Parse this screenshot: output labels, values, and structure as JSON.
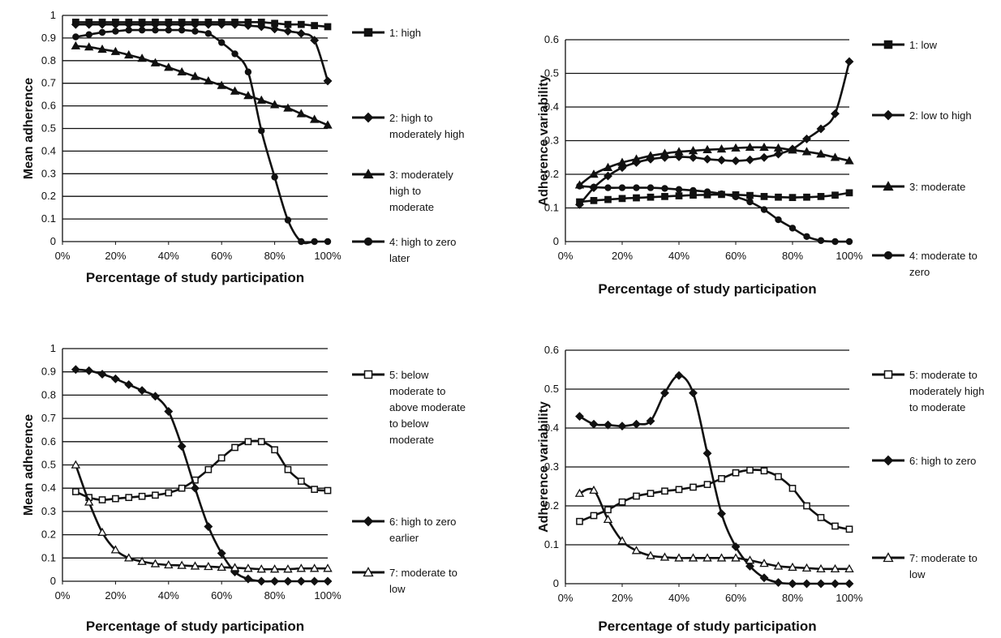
{
  "chart_data": [
    {
      "type": "line",
      "xlabel": "Percentage of study participation",
      "ylabel": "Mean adherence",
      "ylim": [
        0,
        1
      ],
      "yticks": [
        "0",
        "0.1",
        "0.2",
        "0.3",
        "0.4",
        "0.5",
        "0.6",
        "0.7",
        "0.8",
        "0.9",
        "1"
      ],
      "xticks": [
        "0%",
        "20%",
        "40%",
        "60%",
        "80%",
        "100%"
      ],
      "x": [
        5,
        10,
        15,
        20,
        25,
        30,
        35,
        40,
        45,
        50,
        55,
        60,
        65,
        70,
        75,
        80,
        85,
        90,
        95,
        100
      ],
      "series": [
        {
          "name": "1: high",
          "marker": "square",
          "values": [
            0.97,
            0.97,
            0.97,
            0.97,
            0.97,
            0.97,
            0.97,
            0.97,
            0.97,
            0.97,
            0.97,
            0.97,
            0.97,
            0.97,
            0.97,
            0.965,
            0.96,
            0.96,
            0.955,
            0.95
          ]
        },
        {
          "name": "2: high to moderately high",
          "marker": "diamond",
          "values": [
            0.96,
            0.96,
            0.96,
            0.96,
            0.96,
            0.96,
            0.96,
            0.96,
            0.96,
            0.96,
            0.96,
            0.96,
            0.96,
            0.955,
            0.95,
            0.94,
            0.93,
            0.92,
            0.89,
            0.71
          ]
        },
        {
          "name": "3: moderately high to moderate",
          "marker": "triangle",
          "values": [
            0.865,
            0.86,
            0.85,
            0.84,
            0.825,
            0.81,
            0.79,
            0.77,
            0.75,
            0.73,
            0.71,
            0.69,
            0.665,
            0.645,
            0.625,
            0.605,
            0.59,
            0.565,
            0.54,
            0.515
          ]
        },
        {
          "name": "4: high to zero later",
          "marker": "circle",
          "values": [
            0.905,
            0.915,
            0.925,
            0.93,
            0.935,
            0.935,
            0.935,
            0.935,
            0.935,
            0.93,
            0.92,
            0.88,
            0.83,
            0.75,
            0.49,
            0.285,
            0.095,
            0.0,
            0.0,
            0.0
          ]
        }
      ]
    },
    {
      "type": "line",
      "xlabel": "Percentage of study participation",
      "ylabel": "Adherence variability",
      "ylim": [
        0,
        0.6
      ],
      "yticks": [
        "0",
        "0.1",
        "0.2",
        "0.3",
        "0.4",
        "0.5",
        "0.6"
      ],
      "xticks": [
        "0%",
        "20%",
        "40%",
        "60%",
        "80%",
        "100%"
      ],
      "x": [
        5,
        10,
        15,
        20,
        25,
        30,
        35,
        40,
        45,
        50,
        55,
        60,
        65,
        70,
        75,
        80,
        85,
        90,
        95,
        100
      ],
      "series": [
        {
          "name": "1: low",
          "marker": "square",
          "values": [
            0.118,
            0.122,
            0.125,
            0.128,
            0.13,
            0.132,
            0.134,
            0.136,
            0.138,
            0.139,
            0.14,
            0.139,
            0.137,
            0.134,
            0.132,
            0.131,
            0.132,
            0.134,
            0.138,
            0.145
          ]
        },
        {
          "name": "2: low to high",
          "marker": "diamond",
          "values": [
            0.11,
            0.16,
            0.195,
            0.22,
            0.235,
            0.245,
            0.25,
            0.252,
            0.25,
            0.245,
            0.242,
            0.24,
            0.243,
            0.25,
            0.26,
            0.275,
            0.305,
            0.335,
            0.38,
            0.535
          ]
        },
        {
          "name": "3: moderate",
          "marker": "triangle",
          "values": [
            0.168,
            0.2,
            0.22,
            0.235,
            0.245,
            0.255,
            0.262,
            0.267,
            0.27,
            0.273,
            0.275,
            0.278,
            0.28,
            0.28,
            0.278,
            0.272,
            0.267,
            0.26,
            0.25,
            0.24
          ]
        },
        {
          "name": "4: moderate to zero",
          "marker": "circle",
          "values": [
            0.165,
            0.162,
            0.16,
            0.16,
            0.16,
            0.16,
            0.158,
            0.155,
            0.152,
            0.148,
            0.142,
            0.133,
            0.118,
            0.095,
            0.065,
            0.04,
            0.015,
            0.003,
            0.0,
            0.0
          ]
        }
      ]
    },
    {
      "type": "line",
      "xlabel": "Percentage of study participation",
      "ylabel": "Mean adherence",
      "ylim": [
        0,
        1
      ],
      "yticks": [
        "0",
        "0.1",
        "0.2",
        "0.3",
        "0.4",
        "0.5",
        "0.6",
        "0.7",
        "0.8",
        "0.9",
        "1"
      ],
      "xticks": [
        "0%",
        "20%",
        "40%",
        "60%",
        "80%",
        "100%"
      ],
      "x": [
        5,
        10,
        15,
        20,
        25,
        30,
        35,
        40,
        45,
        50,
        55,
        60,
        65,
        70,
        75,
        80,
        85,
        90,
        95,
        100
      ],
      "series": [
        {
          "name": "5: below moderate to above moderate to below moderate",
          "marker": "open-square",
          "values": [
            0.385,
            0.36,
            0.35,
            0.355,
            0.36,
            0.365,
            0.37,
            0.38,
            0.4,
            0.435,
            0.48,
            0.53,
            0.575,
            0.6,
            0.6,
            0.565,
            0.48,
            0.43,
            0.395,
            0.39
          ]
        },
        {
          "name": "6: high to zero earlier",
          "marker": "diamond",
          "values": [
            0.91,
            0.905,
            0.89,
            0.87,
            0.845,
            0.82,
            0.795,
            0.73,
            0.58,
            0.4,
            0.235,
            0.12,
            0.04,
            0.01,
            0.0,
            0.0,
            0.0,
            0.0,
            0.0,
            0.0
          ]
        },
        {
          "name": "7: moderate to low",
          "marker": "open-triangle",
          "values": [
            0.5,
            0.34,
            0.21,
            0.135,
            0.1,
            0.085,
            0.075,
            0.07,
            0.068,
            0.065,
            0.063,
            0.06,
            0.058,
            0.055,
            0.052,
            0.052,
            0.052,
            0.055,
            0.055,
            0.055
          ]
        }
      ]
    },
    {
      "type": "line",
      "xlabel": "Percentage of study participation",
      "ylabel": "Adherence variability",
      "ylim": [
        0,
        0.6
      ],
      "yticks": [
        "0",
        "0.1",
        "0.2",
        "0.3",
        "0.4",
        "0.5",
        "0.6"
      ],
      "xticks": [
        "0%",
        "20%",
        "40%",
        "60%",
        "80%",
        "100%"
      ],
      "x": [
        5,
        10,
        15,
        20,
        25,
        30,
        35,
        40,
        45,
        50,
        55,
        60,
        65,
        70,
        75,
        80,
        85,
        90,
        95,
        100
      ],
      "series": [
        {
          "name": "5: moderate to moderately high to moderate",
          "marker": "open-square",
          "values": [
            0.16,
            0.175,
            0.19,
            0.21,
            0.225,
            0.232,
            0.238,
            0.242,
            0.248,
            0.255,
            0.27,
            0.285,
            0.292,
            0.29,
            0.275,
            0.245,
            0.2,
            0.17,
            0.148,
            0.14
          ]
        },
        {
          "name": "6: high to zero",
          "marker": "diamond",
          "values": [
            0.43,
            0.41,
            0.408,
            0.405,
            0.41,
            0.418,
            0.49,
            0.535,
            0.49,
            0.335,
            0.18,
            0.095,
            0.045,
            0.015,
            0.003,
            0.0,
            0.0,
            0.0,
            0.0,
            0.0
          ]
        },
        {
          "name": "7: moderate to low",
          "marker": "open-triangle",
          "values": [
            0.232,
            0.24,
            0.165,
            0.11,
            0.085,
            0.072,
            0.068,
            0.066,
            0.066,
            0.066,
            0.066,
            0.066,
            0.06,
            0.052,
            0.045,
            0.042,
            0.04,
            0.038,
            0.038,
            0.038
          ]
        }
      ]
    }
  ]
}
